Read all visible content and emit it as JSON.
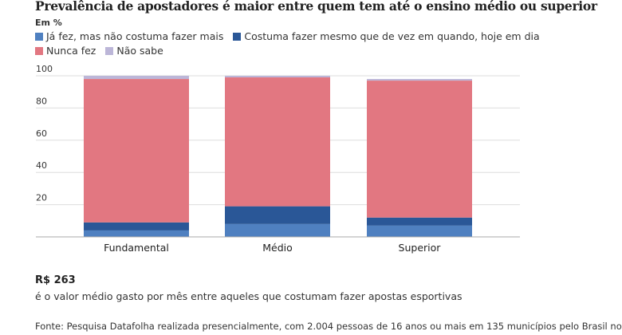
{
  "chart_data": {
    "type": "bar",
    "stacked": true,
    "title": "Prevalência de apostadores é maior entre quem tem até o ensino médio ou superior",
    "subtitle": "Em %",
    "categories": [
      "Fundamental",
      "Médio",
      "Superior"
    ],
    "series": [
      {
        "name": "Já fez, mas não costuma fazer mais",
        "color": "#4f80c0",
        "values": [
          4,
          8,
          7
        ]
      },
      {
        "name": "Costuma fazer mesmo que de vez em quando, hoje em dia",
        "color": "#2a5797",
        "values": [
          5,
          11,
          5
        ]
      },
      {
        "name": "Nunca fez",
        "color": "#e27781",
        "values": [
          89,
          80,
          85
        ]
      },
      {
        "name": "Não sabe",
        "color": "#bcb6d8",
        "values": [
          2,
          1,
          1
        ]
      }
    ],
    "ylim": [
      0,
      100
    ],
    "yticks": [
      20,
      40,
      60,
      80,
      100
    ],
    "grid": true,
    "legend_position": "top"
  },
  "stat": {
    "value": "R$ 263",
    "description": "é o valor médio gasto por mês entre aqueles que costumam fazer apostas esportivas"
  },
  "source": "Fonte: Pesquisa Datafolha realizada presencialmente, com 2.004 pessoas de 16 anos ou mais em 135 municípios pelo Brasil no"
}
